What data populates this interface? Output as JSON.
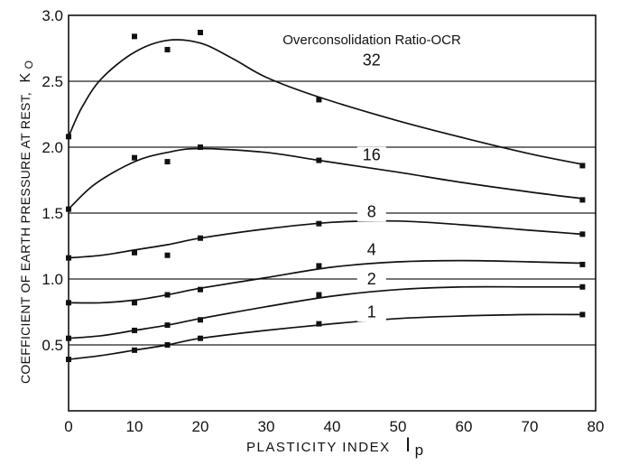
{
  "chart_data": {
    "type": "line",
    "xlabel": "PLASTICITY INDEX",
    "xlabel_symbol": "I",
    "xlabel_subscript": "p",
    "ylabel": "COEFFICIENT OF EARTH PRESSURE AT REST,",
    "ylabel_symbol": "K",
    "ylabel_subscript": "O",
    "annotation": "Overconsolidation Ratio-OCR",
    "xlim": [
      0,
      80
    ],
    "ylim": [
      0,
      3.0
    ],
    "x_ticks": [
      "0",
      "10",
      "20",
      "30",
      "40",
      "50",
      "60",
      "70",
      "80"
    ],
    "y_ticks": [
      "0.5",
      "1.0",
      "1.5",
      "2.0",
      "2.5",
      "3.0"
    ],
    "y_tick_values": [
      0.5,
      1.0,
      1.5,
      2.0,
      2.5,
      3.0
    ],
    "grid_y": [
      0.5,
      1.0,
      1.5,
      2.0,
      2.5
    ],
    "series": [
      {
        "name": "32",
        "label_at": [
          46,
          2.62
        ],
        "curve": [
          [
            0,
            2.08
          ],
          [
            2,
            2.3
          ],
          [
            5,
            2.52
          ],
          [
            10,
            2.72
          ],
          [
            15,
            2.81
          ],
          [
            20,
            2.79
          ],
          [
            25,
            2.67
          ],
          [
            30,
            2.53
          ],
          [
            38,
            2.38
          ],
          [
            50,
            2.2
          ],
          [
            60,
            2.07
          ],
          [
            70,
            1.95
          ],
          [
            78,
            1.87
          ]
        ],
        "points": [
          [
            0,
            2.08
          ],
          [
            10,
            2.84
          ],
          [
            15,
            2.74
          ],
          [
            20,
            2.87
          ],
          [
            38,
            2.36
          ],
          [
            78,
            1.86
          ]
        ]
      },
      {
        "name": "16",
        "label_at": [
          46,
          1.9
        ],
        "curve": [
          [
            0,
            1.53
          ],
          [
            4,
            1.72
          ],
          [
            10,
            1.89
          ],
          [
            15,
            1.96
          ],
          [
            20,
            1.99
          ],
          [
            30,
            1.96
          ],
          [
            38,
            1.9
          ],
          [
            50,
            1.81
          ],
          [
            60,
            1.73
          ],
          [
            70,
            1.66
          ],
          [
            78,
            1.61
          ]
        ],
        "points": [
          [
            0,
            1.53
          ],
          [
            10,
            1.92
          ],
          [
            15,
            1.89
          ],
          [
            20,
            2.0
          ],
          [
            38,
            1.9
          ],
          [
            78,
            1.6
          ]
        ]
      },
      {
        "name": "8",
        "label_at": [
          46,
          1.47
        ],
        "curve": [
          [
            0,
            1.16
          ],
          [
            5,
            1.18
          ],
          [
            10,
            1.22
          ],
          [
            15,
            1.26
          ],
          [
            20,
            1.31
          ],
          [
            30,
            1.38
          ],
          [
            40,
            1.43
          ],
          [
            50,
            1.44
          ],
          [
            60,
            1.41
          ],
          [
            70,
            1.37
          ],
          [
            78,
            1.34
          ]
        ],
        "points": [
          [
            0,
            1.16
          ],
          [
            10,
            1.2
          ],
          [
            15,
            1.18
          ],
          [
            20,
            1.31
          ],
          [
            38,
            1.42
          ],
          [
            78,
            1.34
          ]
        ]
      },
      {
        "name": "4",
        "label_at": [
          46,
          1.18
        ],
        "curve": [
          [
            0,
            0.82
          ],
          [
            5,
            0.82
          ],
          [
            10,
            0.84
          ],
          [
            15,
            0.88
          ],
          [
            20,
            0.93
          ],
          [
            30,
            1.01
          ],
          [
            40,
            1.09
          ],
          [
            50,
            1.13
          ],
          [
            60,
            1.14
          ],
          [
            70,
            1.13
          ],
          [
            78,
            1.12
          ]
        ],
        "points": [
          [
            0,
            0.82
          ],
          [
            10,
            0.82
          ],
          [
            15,
            0.88
          ],
          [
            20,
            0.92
          ],
          [
            38,
            1.1
          ],
          [
            78,
            1.11
          ]
        ]
      },
      {
        "name": "2",
        "label_at": [
          46,
          0.96
        ],
        "curve": [
          [
            0,
            0.55
          ],
          [
            5,
            0.57
          ],
          [
            10,
            0.61
          ],
          [
            15,
            0.65
          ],
          [
            20,
            0.7
          ],
          [
            30,
            0.79
          ],
          [
            40,
            0.87
          ],
          [
            50,
            0.92
          ],
          [
            60,
            0.94
          ],
          [
            70,
            0.94
          ],
          [
            78,
            0.94
          ]
        ],
        "points": [
          [
            0,
            0.55
          ],
          [
            10,
            0.61
          ],
          [
            15,
            0.65
          ],
          [
            20,
            0.69
          ],
          [
            38,
            0.88
          ],
          [
            78,
            0.94
          ]
        ]
      },
      {
        "name": "1",
        "label_at": [
          46,
          0.71
        ],
        "curve": [
          [
            0,
            0.39
          ],
          [
            5,
            0.42
          ],
          [
            10,
            0.46
          ],
          [
            15,
            0.5
          ],
          [
            20,
            0.55
          ],
          [
            30,
            0.61
          ],
          [
            40,
            0.66
          ],
          [
            50,
            0.7
          ],
          [
            60,
            0.72
          ],
          [
            70,
            0.73
          ],
          [
            78,
            0.73
          ]
        ],
        "points": [
          [
            0,
            0.39
          ],
          [
            10,
            0.46
          ],
          [
            15,
            0.5
          ],
          [
            20,
            0.55
          ],
          [
            38,
            0.66
          ],
          [
            78,
            0.73
          ]
        ]
      }
    ]
  }
}
